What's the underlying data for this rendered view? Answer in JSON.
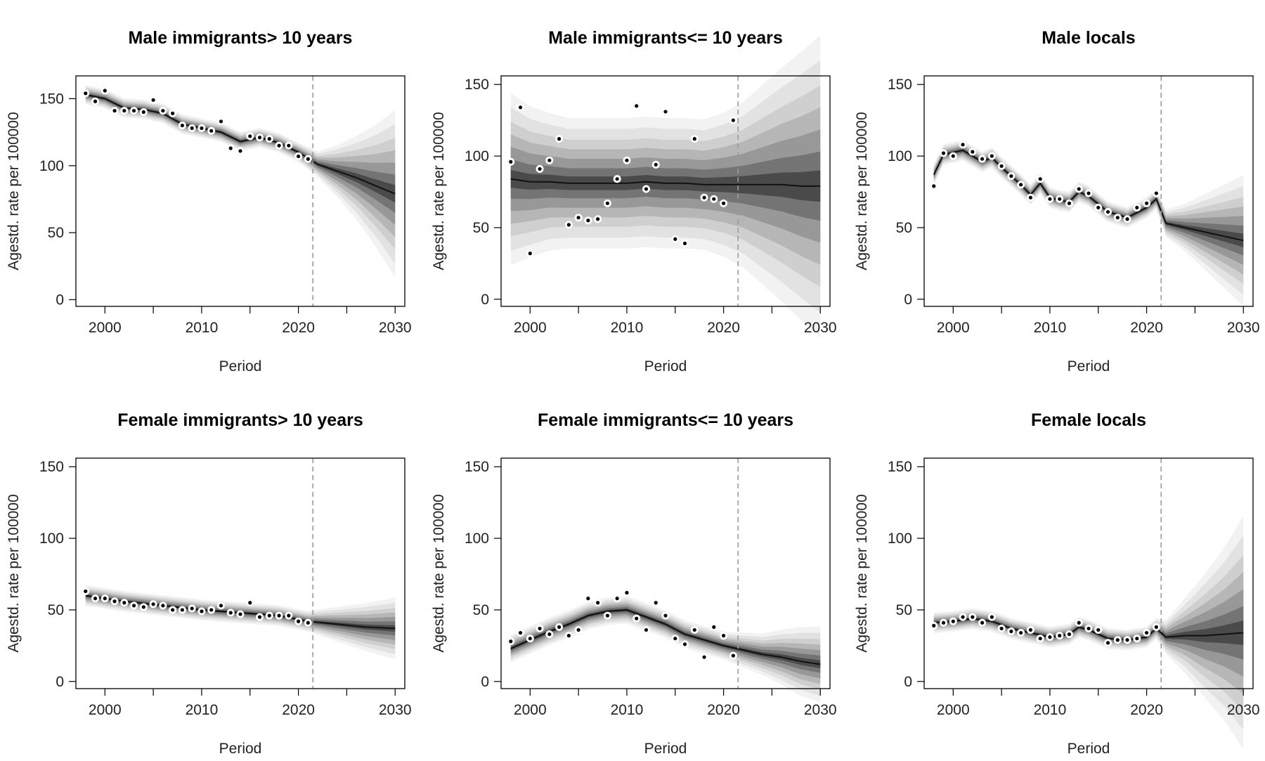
{
  "chart_data": [
    {
      "type": "line",
      "title": "Male immigrants> 10 years",
      "xlabel": "Period",
      "ylabel": "Agestd. rate per 100000",
      "xlim": [
        1997,
        2031
      ],
      "ylim": [
        -5,
        167
      ],
      "xticks": [
        2000,
        2010,
        2020,
        2030
      ],
      "yticks": [
        0,
        50,
        100,
        150
      ],
      "forecast_start": 2021.5,
      "observed": {
        "x": [
          1998,
          1999,
          2000,
          2001,
          2002,
          2003,
          2004,
          2005,
          2006,
          2007,
          2008,
          2009,
          2010,
          2011,
          2012,
          2013,
          2014,
          2015,
          2016,
          2017,
          2018,
          2019,
          2020,
          2021
        ],
        "y": [
          154,
          148,
          156,
          141,
          141,
          141,
          140,
          149,
          141,
          139,
          130,
          128,
          128,
          126,
          133,
          113,
          111,
          122,
          121,
          120,
          115,
          115,
          107,
          105
        ]
      },
      "fitted": {
        "x": [
          1998,
          2000,
          2002,
          2004,
          2006,
          2008,
          2010,
          2012,
          2014,
          2016,
          2018,
          2020,
          2022,
          2024,
          2026,
          2028,
          2030
        ],
        "y": [
          153,
          150,
          143,
          142,
          139,
          131,
          128,
          125,
          118,
          121,
          117,
          110,
          101,
          96,
          91,
          85,
          79
        ],
        "band": [
          3,
          3,
          3,
          3,
          3,
          3,
          3,
          3,
          3,
          3,
          3,
          3,
          4,
          8,
          13,
          19,
          26
        ]
      }
    },
    {
      "type": "line",
      "title": "Male immigrants<= 10 years",
      "xlabel": "Period",
      "ylabel": "Agestd. rate per 100000",
      "xlim": [
        1997,
        2031
      ],
      "ylim": [
        -5,
        156
      ],
      "xticks": [
        2000,
        2010,
        2020,
        2030
      ],
      "yticks": [
        0,
        50,
        100,
        150
      ],
      "forecast_start": 2021.5,
      "observed": {
        "x": [
          1998,
          1999,
          2000,
          2001,
          2002,
          2003,
          2004,
          2005,
          2006,
          2007,
          2008,
          2009,
          2010,
          2011,
          2012,
          2013,
          2014,
          2015,
          2016,
          2017,
          2018,
          2019,
          2020,
          2021
        ],
        "y": [
          96,
          134,
          32,
          91,
          97,
          112,
          52,
          57,
          55,
          56,
          67,
          84,
          97,
          135,
          77,
          94,
          131,
          42,
          39,
          112,
          71,
          70,
          67,
          125
        ]
      },
      "fitted": {
        "x": [
          1998,
          2000,
          2002,
          2004,
          2006,
          2008,
          2010,
          2012,
          2014,
          2016,
          2018,
          2020,
          2022,
          2024,
          2026,
          2028,
          2030
        ],
        "y": [
          84,
          82,
          82,
          81,
          81,
          81,
          81,
          82,
          81,
          81,
          80,
          80,
          80,
          80,
          80,
          79,
          79
        ],
        "band": [
          25,
          22,
          20,
          19,
          19,
          19,
          19,
          19,
          19,
          19,
          19,
          21,
          24,
          29,
          34,
          39,
          44
        ]
      }
    },
    {
      "type": "line",
      "title": "Male locals",
      "xlabel": "Period",
      "ylabel": "Agestd. rate per 100000",
      "xlim": [
        1997,
        2031
      ],
      "ylim": [
        -5,
        156
      ],
      "xticks": [
        2000,
        2010,
        2020,
        2030
      ],
      "yticks": [
        0,
        50,
        100,
        150
      ],
      "forecast_start": 2021.5,
      "observed": {
        "x": [
          1998,
          1999,
          2000,
          2001,
          2002,
          2003,
          2004,
          2005,
          2006,
          2007,
          2008,
          2009,
          2010,
          2011,
          2012,
          2013,
          2014,
          2015,
          2016,
          2017,
          2018,
          2019,
          2020,
          2021
        ],
        "y": [
          79,
          102,
          100,
          108,
          103,
          98,
          100,
          93,
          86,
          80,
          71,
          84,
          70,
          70,
          67,
          77,
          74,
          64,
          61,
          57,
          56,
          64,
          67,
          74
        ]
      },
      "fitted": {
        "x": [
          1998,
          1999,
          2001,
          2003,
          2004,
          2005,
          2006,
          2007,
          2008,
          2009,
          2010,
          2011,
          2012,
          2013,
          2014,
          2016,
          2018,
          2020,
          2021,
          2022,
          2024,
          2026,
          2028,
          2030
        ],
        "y": [
          87,
          101,
          104,
          96,
          99,
          92,
          86,
          80,
          73,
          81,
          71,
          69,
          68,
          75,
          72,
          61,
          57,
          64,
          70,
          53,
          50,
          47,
          44,
          41
        ],
        "band": [
          3,
          3,
          3,
          3,
          3,
          3,
          3,
          3,
          3,
          3,
          3,
          3,
          3,
          3,
          3,
          3,
          3,
          3,
          3,
          4,
          7,
          11,
          15,
          19
        ]
      }
    },
    {
      "type": "line",
      "title": "Female immigrants> 10 years",
      "xlabel": "Period",
      "ylabel": "Agestd. rate per 100000",
      "xlim": [
        1997,
        2031
      ],
      "ylim": [
        -5,
        156
      ],
      "xticks": [
        2000,
        2010,
        2020,
        2030
      ],
      "yticks": [
        0,
        50,
        100,
        150
      ],
      "forecast_start": 2021.5,
      "observed": {
        "x": [
          1998,
          1999,
          2000,
          2001,
          2002,
          2003,
          2004,
          2005,
          2006,
          2007,
          2008,
          2009,
          2010,
          2011,
          2012,
          2013,
          2014,
          2015,
          2016,
          2017,
          2018,
          2019,
          2020,
          2021
        ],
        "y": [
          63,
          58,
          58,
          56,
          55,
          53,
          52,
          54,
          53,
          50,
          50,
          51,
          49,
          50,
          53,
          48,
          47,
          55,
          45,
          46,
          46,
          46,
          42,
          41
        ]
      },
      "fitted": {
        "x": [
          1998,
          2002,
          2006,
          2010,
          2014,
          2018,
          2021,
          2024,
          2027,
          2030
        ],
        "y": [
          60,
          56,
          53,
          50,
          48,
          46,
          42,
          40,
          38,
          37
        ],
        "band": [
          3,
          3,
          3,
          3,
          3,
          3,
          3,
          5,
          7,
          9
        ]
      }
    },
    {
      "type": "line",
      "title": "Female immigrants<= 10 years",
      "xlabel": "Period",
      "ylabel": "Agestd. rate per 100000",
      "xlim": [
        1997,
        2031
      ],
      "ylim": [
        -5,
        156
      ],
      "xticks": [
        2000,
        2010,
        2020,
        2030
      ],
      "yticks": [
        0,
        50,
        100,
        150
      ],
      "forecast_start": 2021.5,
      "observed": {
        "x": [
          1998,
          1999,
          2000,
          2001,
          2002,
          2003,
          2004,
          2005,
          2006,
          2007,
          2008,
          2009,
          2010,
          2011,
          2012,
          2013,
          2014,
          2015,
          2016,
          2017,
          2018,
          2019,
          2020,
          2021
        ],
        "y": [
          28,
          34,
          30,
          37,
          33,
          38,
          32,
          36,
          58,
          55,
          46,
          58,
          62,
          44,
          36,
          55,
          46,
          30,
          26,
          36,
          17,
          38,
          32,
          18
        ]
      },
      "fitted": {
        "x": [
          1998,
          2000,
          2002,
          2004,
          2006,
          2008,
          2010,
          2012,
          2014,
          2016,
          2018,
          2020,
          2022,
          2024,
          2026,
          2028,
          2030
        ],
        "y": [
          23,
          29,
          35,
          40,
          46,
          49,
          50,
          45,
          40,
          33,
          29,
          25,
          22,
          19,
          17,
          14,
          12
        ],
        "band": [
          4,
          4,
          4,
          4,
          4,
          4,
          4,
          4,
          4,
          4,
          4,
          4,
          5,
          6,
          8,
          10,
          11
        ]
      }
    },
    {
      "type": "line",
      "title": "Female locals",
      "xlabel": "Period",
      "ylabel": "Agestd. rate per 100000",
      "xlim": [
        1997,
        2031
      ],
      "ylim": [
        -5,
        156
      ],
      "xticks": [
        2000,
        2010,
        2020,
        2030
      ],
      "yticks": [
        0,
        50,
        100,
        150
      ],
      "forecast_start": 2021.5,
      "observed": {
        "x": [
          1998,
          1999,
          2000,
          2001,
          2002,
          2003,
          2004,
          2005,
          2006,
          2007,
          2008,
          2009,
          2010,
          2011,
          2012,
          2013,
          2014,
          2015,
          2016,
          2017,
          2018,
          2019,
          2020,
          2021
        ],
        "y": [
          39,
          41,
          42,
          45,
          45,
          41,
          45,
          37,
          35,
          34,
          36,
          30,
          31,
          32,
          33,
          41,
          37,
          36,
          27,
          29,
          29,
          30,
          34,
          38
        ]
      },
      "fitted": {
        "x": [
          1998,
          2000,
          2002,
          2004,
          2006,
          2008,
          2010,
          2012,
          2013,
          2014,
          2016,
          2018,
          2020,
          2021,
          2022,
          2024,
          2026,
          2028,
          2030
        ],
        "y": [
          41,
          42,
          44,
          42,
          37,
          34,
          31,
          33,
          38,
          36,
          30,
          29,
          31,
          37,
          31,
          32,
          32,
          33,
          34
        ],
        "band": [
          3,
          3,
          3,
          3,
          3,
          3,
          3,
          3,
          3,
          3,
          3,
          3,
          3,
          3,
          5,
          11,
          18,
          25,
          34
        ]
      }
    }
  ]
}
